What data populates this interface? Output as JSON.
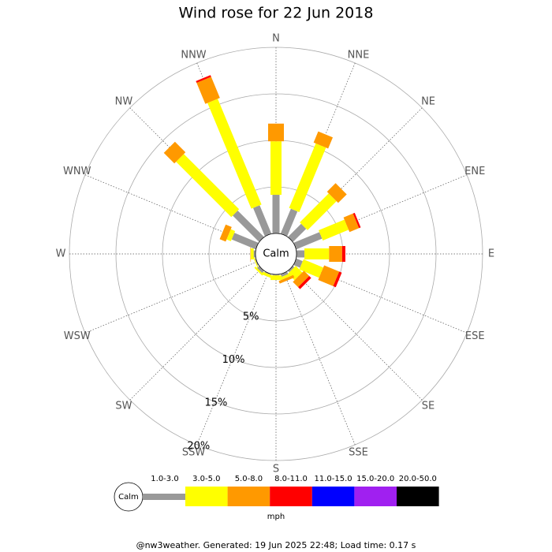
{
  "chart_data": {
    "type": "windrose",
    "title": "Wind rose for 22 Jun 2018",
    "categories": [
      "N",
      "NNE",
      "NE",
      "ENE",
      "E",
      "ESE",
      "SE",
      "SSE",
      "S",
      "SSW",
      "SW",
      "WSW",
      "W",
      "WNW",
      "NW",
      "NNW"
    ],
    "center_label": "Calm",
    "rlim": [
      0,
      20
    ],
    "rticks": [
      {
        "value": 5,
        "label": "5%"
      },
      {
        "value": 10,
        "label": "10%"
      },
      {
        "value": 15,
        "label": "15%"
      },
      {
        "value": 20,
        "label": "20%"
      }
    ],
    "series": [
      {
        "name": "1.0-3.0",
        "color": "#999999",
        "values": [
          4.15,
          2.9,
          2.0,
          3.0,
          0.85,
          0.75,
          0.2,
          0.3,
          0.1,
          0.1,
          0.3,
          0.1,
          0.2,
          2.8,
          4.0,
          3.3
        ]
      },
      {
        "name": "3.0-5.0",
        "color": "#ffff00",
        "values": [
          5.75,
          7.5,
          4.4,
          3.0,
          2.65,
          2.3,
          1.0,
          0.3,
          0.5,
          0.3,
          0.2,
          0.1,
          0.3,
          0.5,
          8.4,
          12.3
        ]
      },
      {
        "name": "5.0-8.0",
        "color": "#ff9900",
        "values": [
          1.9,
          1.3,
          1.3,
          1.1,
          1.4,
          1.75,
          0.8,
          0.3,
          0,
          0,
          0,
          0,
          0.05,
          0.7,
          1.6,
          2.45
        ]
      },
      {
        "name": "8.0-11.0",
        "color": "#ff0000",
        "values": [
          0,
          0,
          0,
          0.2,
          0.35,
          0.3,
          0.3,
          0,
          0,
          0,
          0,
          0,
          0,
          0,
          0,
          0.2
        ]
      },
      {
        "name": "11.0-15.0",
        "color": "#0000ff",
        "values": [
          0,
          0,
          0,
          0,
          0,
          0,
          0,
          0,
          0,
          0,
          0,
          0,
          0,
          0,
          0,
          0
        ]
      },
      {
        "name": "15.0-20.0",
        "color": "#a020f0",
        "values": [
          0,
          0,
          0,
          0,
          0,
          0,
          0,
          0,
          0,
          0,
          0,
          0,
          0,
          0,
          0,
          0
        ]
      },
      {
        "name": "20.0-50.0",
        "color": "#000000",
        "values": [
          0,
          0,
          0,
          0,
          0,
          0,
          0,
          0,
          0,
          0,
          0,
          0,
          0,
          0,
          0,
          0
        ]
      }
    ],
    "legend_unit": "mph",
    "footer": "@nw3weather. Generated: 19 Jun 2025 22:48; Load time: 0.17 s"
  }
}
